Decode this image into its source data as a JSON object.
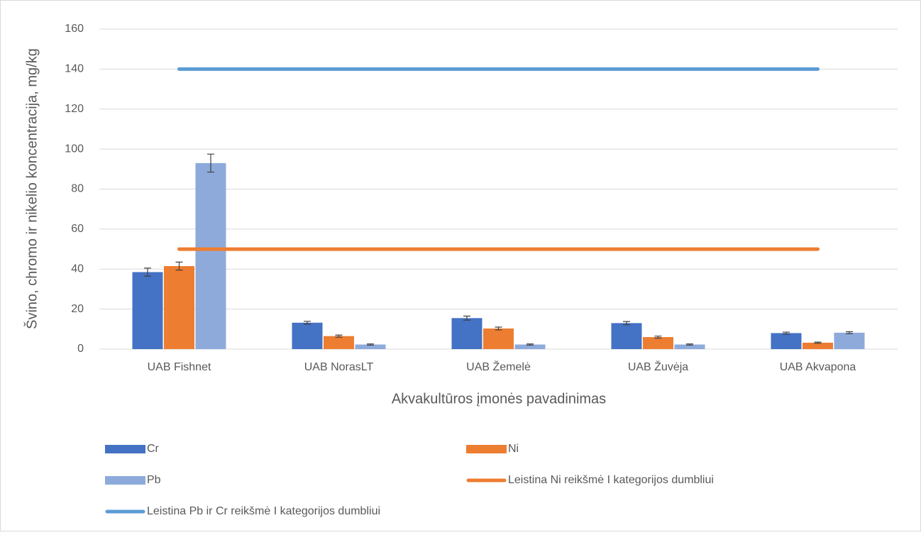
{
  "chart_data": {
    "type": "bar",
    "x_label": "Akvakultūros įmonės pavadinimas",
    "y_label": "Švino, chromo ir nikelio koncentracija, mg/kg",
    "categories": [
      "UAB Fishnet",
      "UAB NorasLT",
      "UAB Žemelė",
      "UAB Žuvėja",
      "UAB Akvapona"
    ],
    "series": [
      {
        "name": "Cr",
        "type": "bar",
        "color": "#4472c4",
        "values": [
          38.5,
          13.2,
          15.5,
          13,
          8
        ],
        "errors": [
          2,
          0.7,
          1,
          0.8,
          0.5
        ]
      },
      {
        "name": "Ni",
        "type": "bar",
        "color": "#ed7d31",
        "values": [
          41.5,
          6.5,
          10.3,
          6,
          3.2
        ],
        "errors": [
          2,
          0.5,
          0.7,
          0.5,
          0.3
        ]
      },
      {
        "name": "Pb",
        "type": "bar",
        "color": "#8eaadb",
        "values": [
          93,
          2.3,
          2.3,
          2.3,
          8.2
        ],
        "errors": [
          4.5,
          0.3,
          0.3,
          0.3,
          0.5
        ]
      },
      {
        "name": "Leistina Ni reikšmė I kategorijos dumbliui",
        "type": "line",
        "color": "#ed7d31",
        "values": [
          50,
          50,
          50,
          50,
          50
        ]
      },
      {
        "name": "Leistina Pb ir Cr reikšmė I kategorijos dumbliui",
        "type": "line",
        "color": "#5b9bd5",
        "values": [
          140,
          140,
          140,
          140,
          140
        ]
      }
    ],
    "ylim": [
      0,
      160
    ],
    "yticks": [
      0,
      20,
      40,
      60,
      80,
      100,
      120,
      140,
      160
    ],
    "grid": true,
    "legend": "bottom"
  }
}
